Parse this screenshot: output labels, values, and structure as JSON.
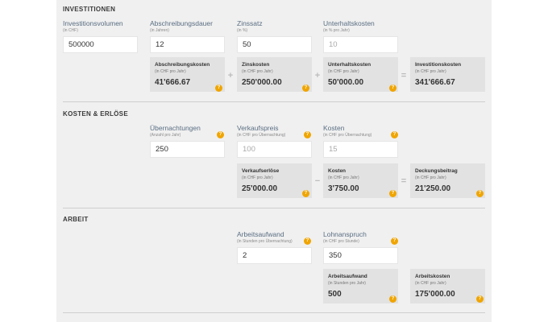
{
  "sections": {
    "investitionen": "INVESTITIONEN",
    "kosten": "KOSTEN & ERLÖSE",
    "arbeit": "ARBEIT"
  },
  "inv": {
    "volumen": {
      "label": "Investitionsvolumen",
      "sub": "(in CHF)",
      "value": "500000"
    },
    "dauer": {
      "label": "Abschreibungsdauer",
      "sub": "(in Jahren)",
      "value": "12"
    },
    "zinssatz": {
      "label": "Zinssatz",
      "sub": "(in %)",
      "value": "50"
    },
    "unterhalt": {
      "label": "Unterhaltskosten",
      "sub": "(in % pro Jahr)",
      "value": "10"
    },
    "r_abschr": {
      "label": "Abschreibungskosten",
      "sub": "(in CHF pro Jahr)",
      "value": "41'666.67"
    },
    "r_zins": {
      "label": "Zinskosten",
      "sub": "(in CHF pro Jahr)",
      "value": "250'000.00"
    },
    "r_unterhalt": {
      "label": "Unterhaltskosten",
      "sub": "(in CHF pro Jahr)",
      "value": "50'000.00"
    },
    "r_invest": {
      "label": "Investitionskosten",
      "sub": "(in CHF pro Jahr)",
      "value": "341'666.67"
    }
  },
  "ke": {
    "nacht": {
      "label": "Übernachtungen",
      "sub": "(Anzahl pro Jahr)",
      "value": "250"
    },
    "preis": {
      "label": "Verkaufspreis",
      "sub": "(in CHF pro Übernachtung)",
      "value": "100"
    },
    "kosten": {
      "label": "Kosten",
      "sub": "(in CHF pro Übernachtung)",
      "value": "15"
    },
    "r_erloese": {
      "label": "Verkaufserlöse",
      "sub": "(in CHF pro Jahr)",
      "value": "25'000.00"
    },
    "r_kosten": {
      "label": "Kosten",
      "sub": "(in CHF pro Jahr)",
      "value": "3'750.00"
    },
    "r_deckung": {
      "label": "Deckungsbeitrag",
      "sub": "(in CHF pro Jahr)",
      "value": "21'250.00"
    }
  },
  "arbeit": {
    "aufwand": {
      "label": "Arbeitsaufwand",
      "sub": "(in Stunden pro Übernachtung)",
      "value": "2"
    },
    "lohn": {
      "label": "Lohnanspruch",
      "sub": "(in CHF pro Stunde)",
      "value": "350"
    },
    "r_aufwand": {
      "label": "Arbeitsaufwand",
      "sub": "(in Stunden pro Jahr)",
      "value": "500"
    },
    "r_kosten": {
      "label": "Arbeitskosten",
      "sub": "(in CHF pro Jahr)",
      "value": "175'000.00"
    }
  },
  "ops": {
    "plus": "+",
    "minus": "−",
    "equals": "="
  },
  "help_glyph": "?",
  "colors": {
    "help": "#f0a500",
    "panel": "#f0f0f0",
    "result": "#e2e2e2"
  }
}
